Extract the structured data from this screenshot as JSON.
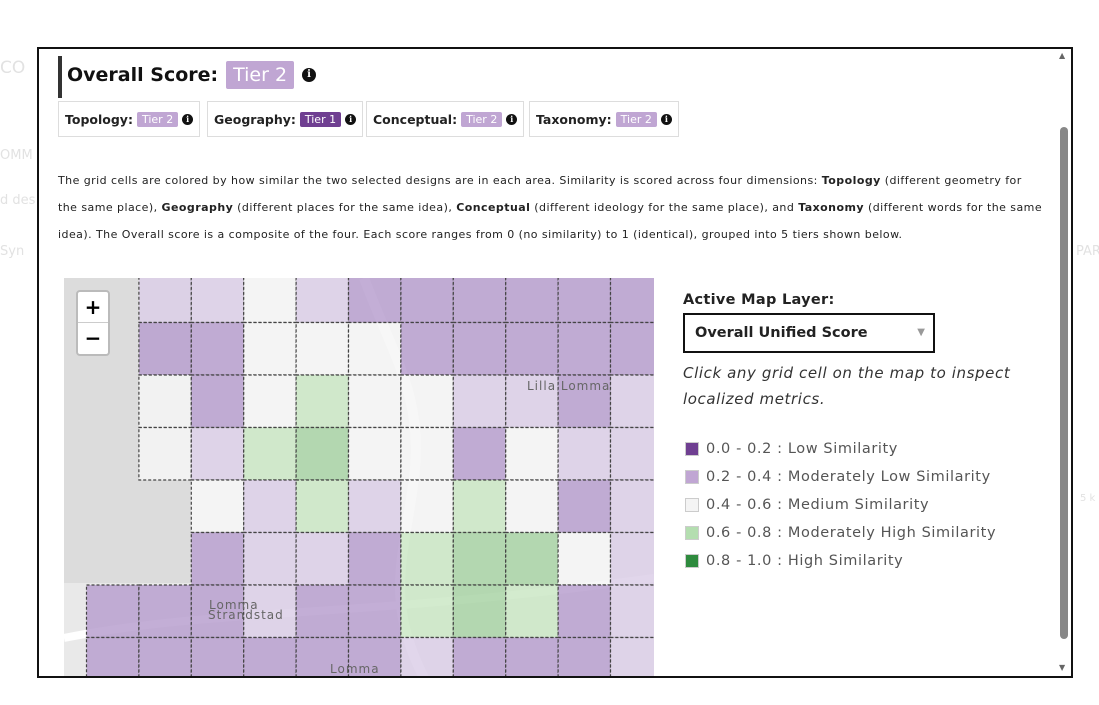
{
  "background": {
    "fragments": [
      "CO",
      "OMM",
      "d des",
      "Syn",
      "PAR",
      "5 k"
    ]
  },
  "header": {
    "title": "Overall Score:",
    "tier": "Tier 2"
  },
  "scores": [
    {
      "label": "Topology:",
      "tier": "Tier 2"
    },
    {
      "label": "Geography:",
      "tier": "Tier 1"
    },
    {
      "label": "Conceptual:",
      "tier": "Tier 2"
    },
    {
      "label": "Taxonomy:",
      "tier": "Tier 2"
    }
  ],
  "description": [
    {
      "text": "The grid cells are colored by how similar the two selected designs are in each area. Similarity is scored across four dimensions: "
    },
    {
      "text": "Topology",
      "bold": true
    },
    {
      "text": " (different geometry for the same place), "
    },
    {
      "text": "Geography",
      "bold": true
    },
    {
      "text": " (different places for the same idea), "
    },
    {
      "text": "Conceptual",
      "bold": true
    },
    {
      "text": " (different ideology for the same place), and "
    },
    {
      "text": "Taxonomy",
      "bold": true
    },
    {
      "text": " (different words for the same idea). The Overall score is a composite of the four. Each score ranges from 0 (no similarity) to 1 (identical), grouped into 5 tiers shown below."
    }
  ],
  "map": {
    "zoom_in": "+",
    "zoom_out": "−",
    "labels": [
      "Lilla Lomma",
      "Lomma",
      "Strandstad",
      "Lomma"
    ]
  },
  "panel": {
    "layer_label": "Active Map Layer:",
    "layer_select": "Overall Unified Score",
    "hint": "Click any grid cell on the map to inspect localized metrics.",
    "legend": [
      {
        "text": "0.0 - 0.2 : Low Similarity",
        "color": "#6f3f91"
      },
      {
        "text": "0.2 - 0.4 : Moderately Low Similarity",
        "color": "#c0a6d3"
      },
      {
        "text": "0.4 - 0.6 : Medium Similarity",
        "color": "#f4f4f4"
      },
      {
        "text": "0.6 - 0.8 : Moderately High Similarity",
        "color": "#b4deb0"
      },
      {
        "text": "0.8 - 1.0 : High Similarity",
        "color": "#2e8b3e"
      }
    ]
  }
}
